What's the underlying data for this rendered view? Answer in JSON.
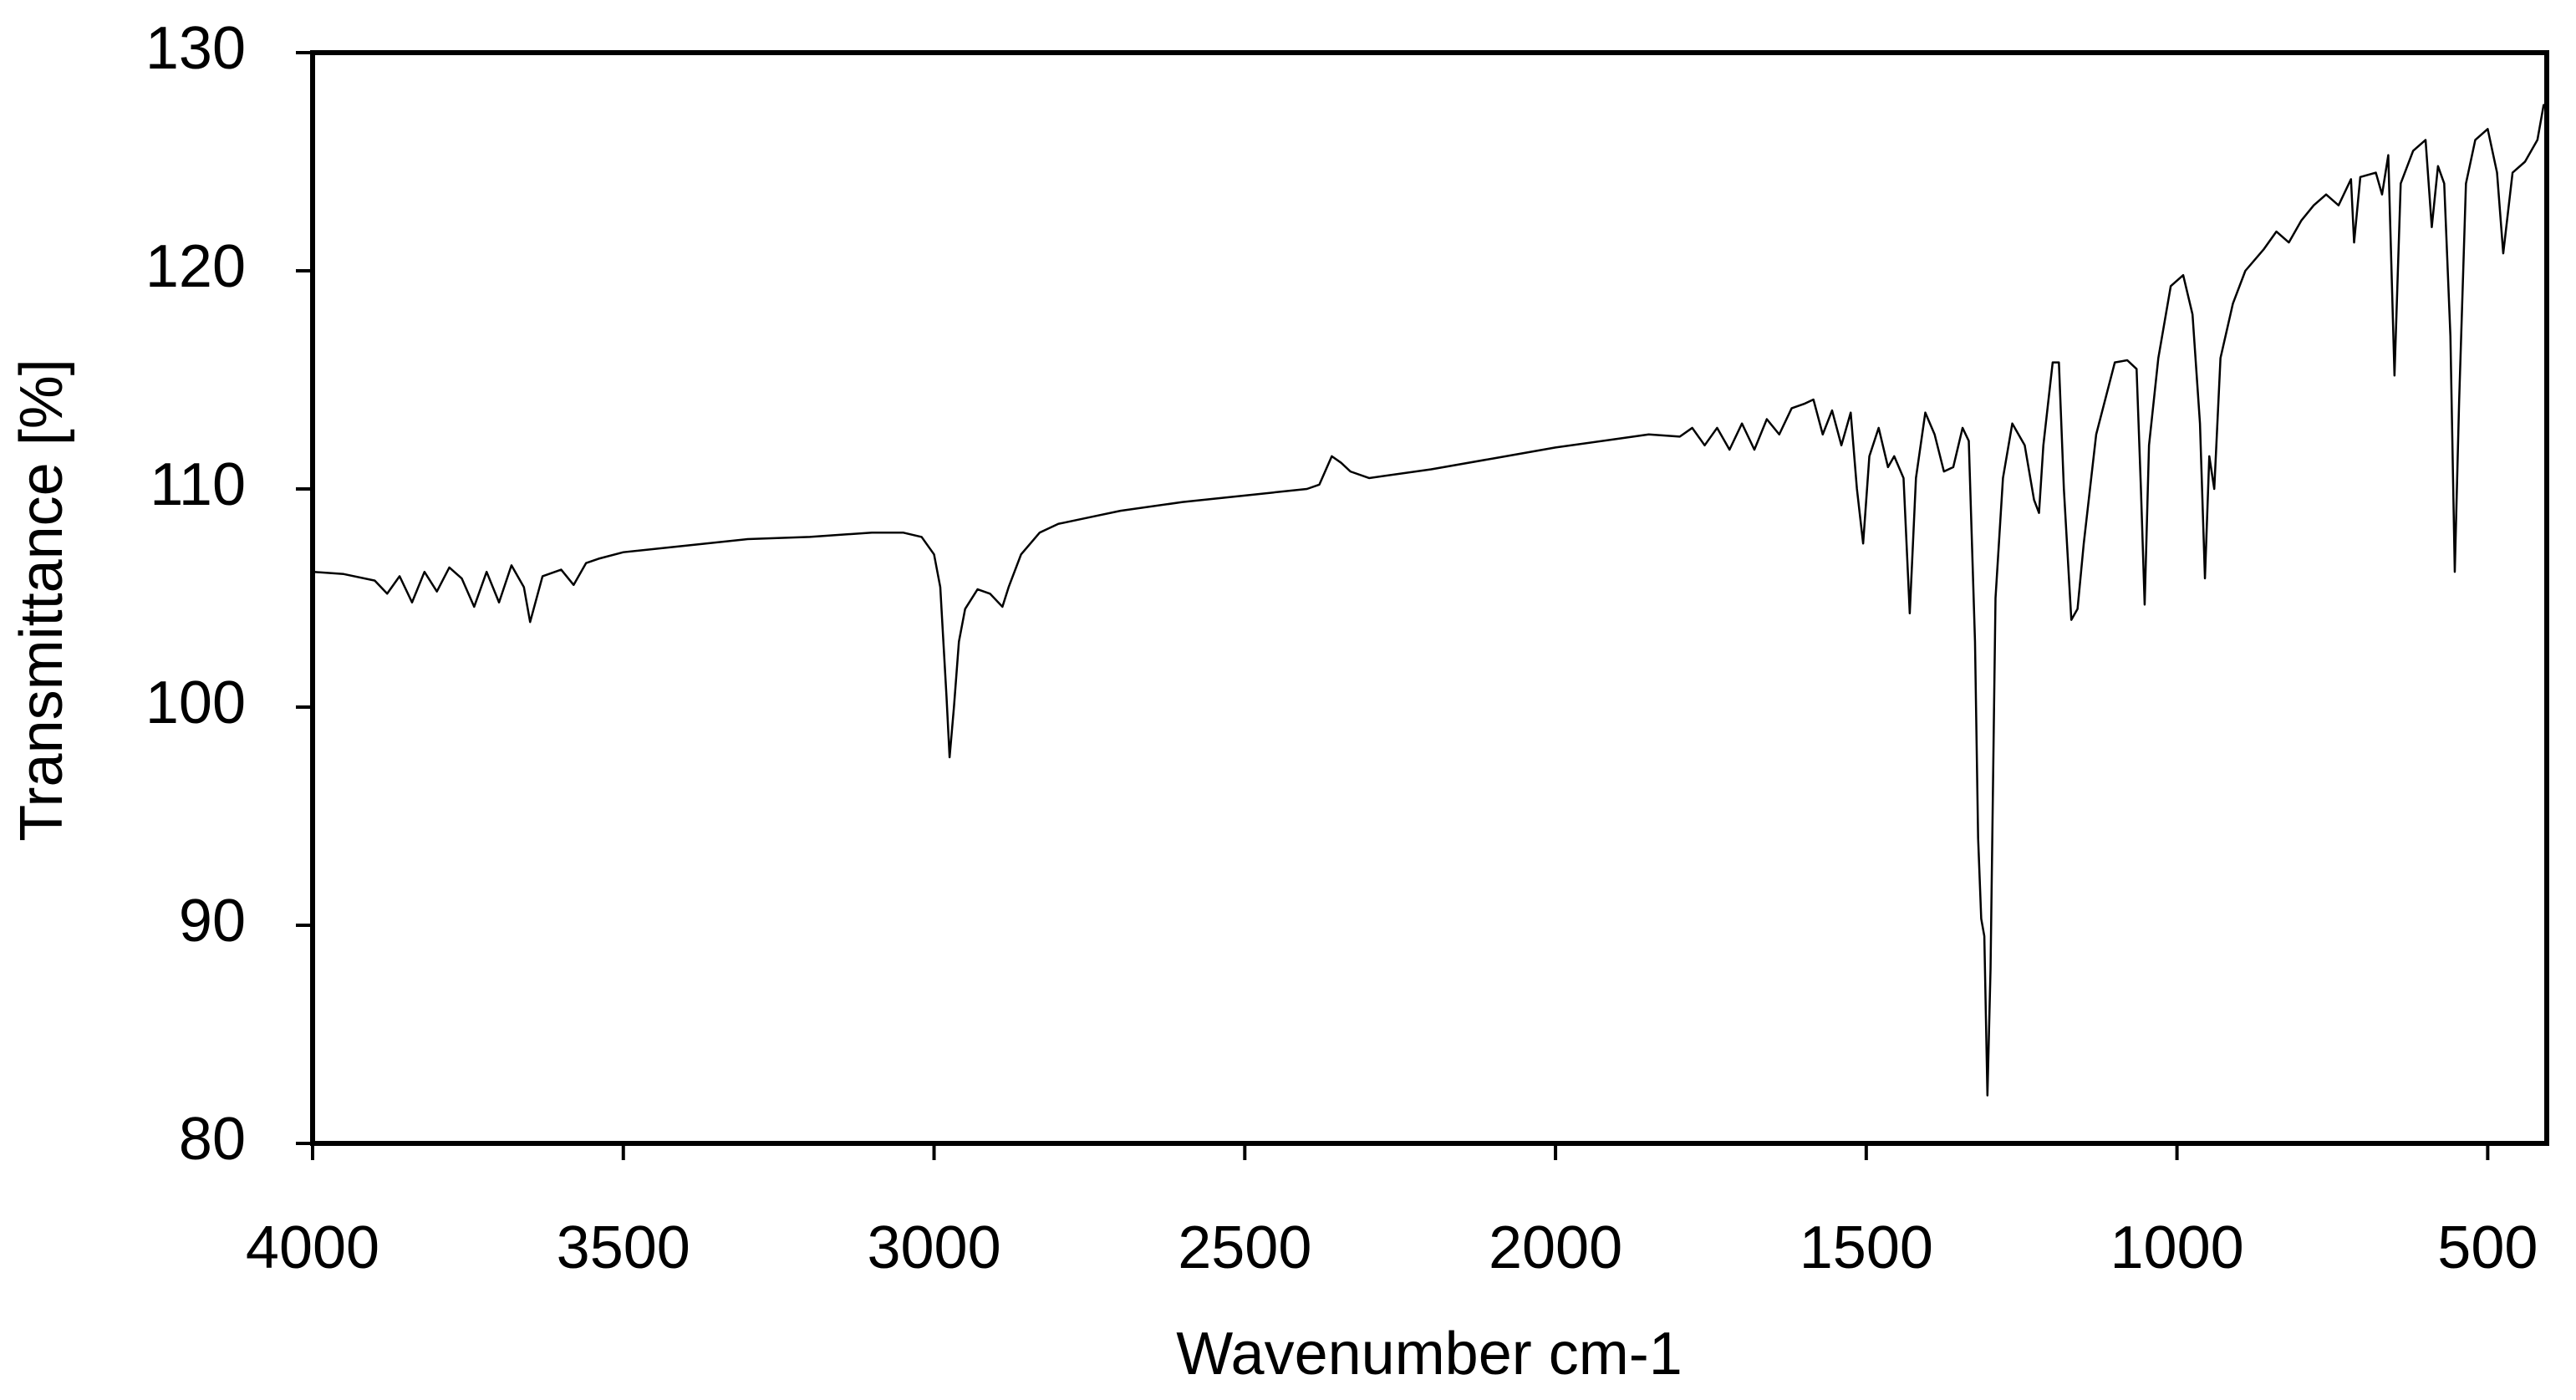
{
  "chart_data": {
    "type": "line",
    "xlabel": "Wavenumber cm-1",
    "ylabel": "Transmittance [%]",
    "xlim": [
      4000,
      405
    ],
    "ylim": [
      80,
      130
    ],
    "xticks": [
      4000,
      3500,
      3000,
      2500,
      2000,
      1500,
      1000,
      500
    ],
    "yticks": [
      80,
      90,
      100,
      110,
      120,
      130
    ],
    "grid": false,
    "series": [
      {
        "color": "#000000",
        "x": [
          4000,
          3950,
          3900,
          3880,
          3860,
          3840,
          3820,
          3800,
          3780,
          3760,
          3740,
          3720,
          3700,
          3680,
          3660,
          3650,
          3630,
          3600,
          3580,
          3560,
          3540,
          3500,
          3400,
          3300,
          3200,
          3100,
          3050,
          3020,
          3000,
          2990,
          2980,
          2975,
          2968,
          2960,
          2950,
          2930,
          2910,
          2890,
          2880,
          2860,
          2830,
          2800,
          2750,
          2700,
          2600,
          2500,
          2400,
          2380,
          2360,
          2345,
          2330,
          2300,
          2200,
          2100,
          2000,
          1900,
          1850,
          1800,
          1780,
          1760,
          1740,
          1720,
          1700,
          1680,
          1660,
          1640,
          1620,
          1600,
          1585,
          1570,
          1555,
          1540,
          1525,
          1515,
          1505,
          1495,
          1480,
          1465,
          1455,
          1440,
          1430,
          1420,
          1405,
          1390,
          1375,
          1360,
          1345,
          1335,
          1325,
          1320,
          1315,
          1310,
          1305,
          1300,
          1292,
          1280,
          1265,
          1245,
          1230,
          1222,
          1215,
          1200,
          1190,
          1182,
          1170,
          1160,
          1150,
          1130,
          1100,
          1080,
          1065,
          1058,
          1052,
          1045,
          1030,
          1010,
          990,
          975,
          963,
          955,
          948,
          940,
          930,
          910,
          890,
          860,
          840,
          820,
          800,
          780,
          760,
          740,
          720,
          715,
          705,
          680,
          670,
          660,
          650,
          640,
          620,
          600,
          590,
          580,
          570,
          560,
          553,
          546,
          535,
          520,
          500,
          485,
          475,
          460,
          440,
          420,
          410,
          405
        ],
        "values": [
          106.2,
          106.1,
          105.8,
          105.2,
          106.0,
          104.8,
          106.2,
          105.3,
          106.4,
          105.9,
          104.6,
          106.2,
          104.8,
          106.5,
          105.5,
          103.9,
          106.0,
          106.3,
          105.6,
          106.6,
          106.8,
          107.1,
          107.4,
          107.7,
          107.8,
          108.0,
          108.0,
          107.8,
          107.0,
          105.5,
          100.5,
          97.7,
          100.0,
          103.0,
          104.5,
          105.4,
          105.2,
          104.6,
          105.5,
          107.0,
          108.0,
          108.4,
          108.7,
          109.0,
          109.4,
          109.7,
          110.0,
          110.2,
          111.5,
          111.2,
          110.8,
          110.5,
          110.9,
          111.4,
          111.9,
          112.3,
          112.5,
          112.4,
          112.8,
          112.0,
          112.8,
          111.8,
          113.0,
          111.8,
          113.2,
          112.5,
          113.7,
          113.9,
          114.1,
          112.5,
          113.6,
          112.0,
          113.5,
          110.0,
          107.5,
          111.5,
          112.8,
          111.0,
          111.5,
          110.5,
          104.3,
          110.5,
          113.5,
          112.5,
          110.8,
          111.0,
          112.8,
          112.2,
          103.0,
          94.0,
          90.3,
          89.5,
          82.2,
          88.0,
          105.0,
          110.5,
          113.0,
          112.0,
          109.5,
          108.9,
          112.0,
          115.8,
          115.8,
          110.0,
          104.0,
          104.5,
          107.5,
          112.5,
          115.8,
          115.9,
          115.5,
          110.0,
          104.7,
          112.0,
          116.0,
          119.3,
          119.8,
          118.0,
          113.0,
          105.9,
          111.5,
          110.0,
          116.0,
          118.5,
          120.0,
          121.0,
          121.8,
          121.3,
          122.3,
          123.0,
          123.5,
          123.0,
          124.2,
          121.3,
          124.3,
          124.5,
          123.5,
          125.3,
          115.2,
          124.0,
          125.5,
          126.0,
          122.0,
          124.8,
          124.0,
          117.0,
          106.2,
          114.0,
          124.0,
          126.0,
          126.5,
          124.5,
          120.8,
          124.5,
          125.0,
          126.0,
          127.6,
          127.6
        ]
      }
    ]
  }
}
